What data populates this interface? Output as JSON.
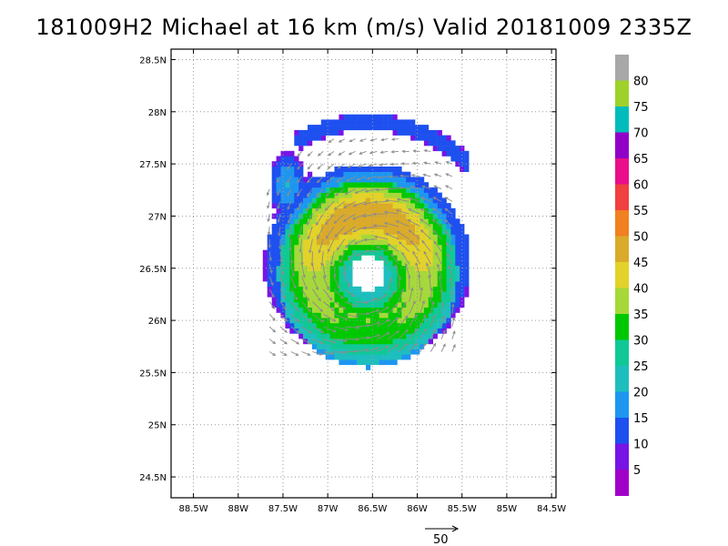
{
  "title": "181009H2 Michael at 16 km (m/s) Valid 20181009  2335Z",
  "map": {
    "lat_labels": [
      "28.5N",
      "28N",
      "27.5N",
      "27N",
      "26.5N",
      "26N",
      "25.5N",
      "25N",
      "24.5N"
    ],
    "lon_labels": [
      "88.5W",
      "88W",
      "87.5W",
      "87W",
      "86.5W",
      "86W",
      "85.5W",
      "85W",
      "84.5W"
    ],
    "grid": "dotted",
    "lat_range": [
      24.3,
      28.6
    ],
    "lon_range": [
      -88.75,
      -84.45
    ]
  },
  "colorbar": {
    "labels": [
      "80",
      "75",
      "70",
      "65",
      "60",
      "55",
      "50",
      "45",
      "40",
      "35",
      "30",
      "25",
      "20",
      "15",
      "10",
      "5"
    ],
    "colors": [
      "#a8a8a8",
      "#9ed22a",
      "#00bcbc",
      "#9000c8",
      "#ea0e8a",
      "#f04040",
      "#f08020",
      "#daaa2a",
      "#e2d22a",
      "#a6d83a",
      "#00c800",
      "#10c896",
      "#1ebebe",
      "#1e96f0",
      "#1e50f0",
      "#7814e6",
      "#a000c8"
    ]
  },
  "vector_scale": {
    "label": "50"
  },
  "chart_data": {
    "type": "heatmap",
    "title": "181009H2 Michael at 16 km (m/s) Valid 20181009  2335Z",
    "variable": "wind speed (m/s) with wind vectors",
    "storm_center_approx": {
      "lat": 26.45,
      "lon": -86.55
    },
    "max_wind_region": {
      "lat": 27.0,
      "lon": -86.45,
      "value_range": [
        40,
        45
      ]
    },
    "wind_speed_bins": [
      0,
      5,
      10,
      15,
      20,
      25,
      30,
      35,
      40,
      45,
      50,
      55,
      60,
      65,
      70,
      75,
      80
    ]
  }
}
